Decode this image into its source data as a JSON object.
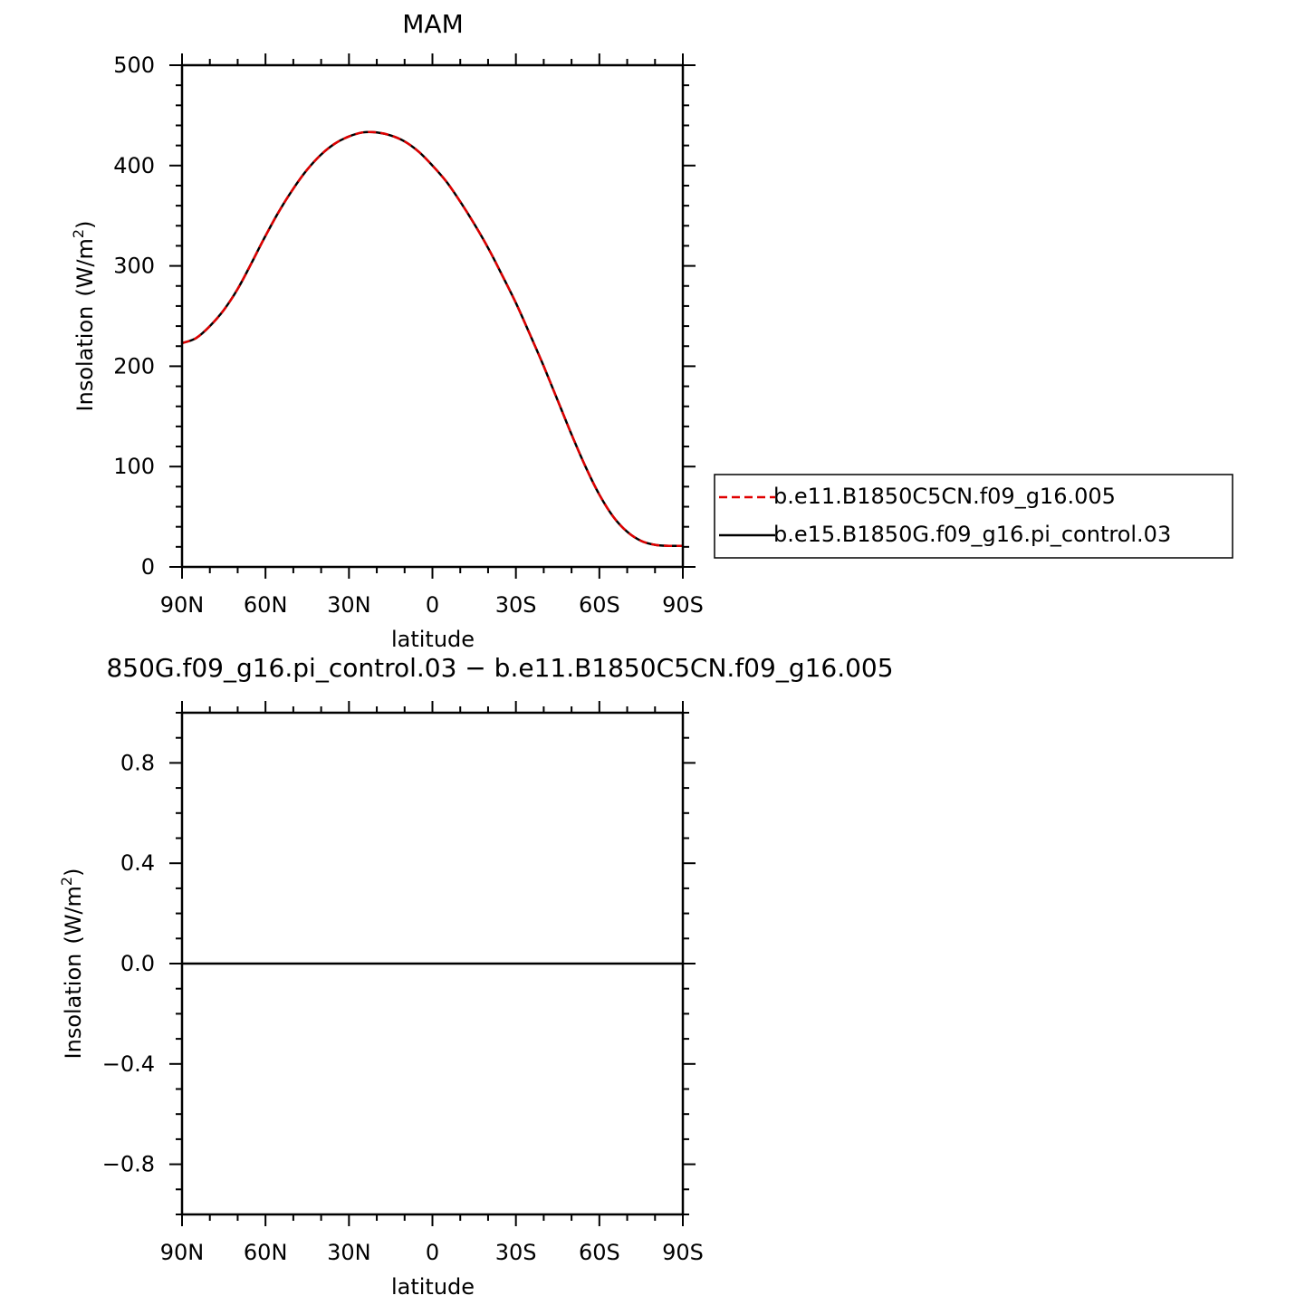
{
  "chart_data": [
    {
      "type": "line",
      "title": "MAM",
      "xlabel": "latitude",
      "ylabel": "Insolation (W/m²)",
      "ylabel_main": "Insolation",
      "ylabel_unit_pre": "(W/m",
      "ylabel_unit_sup": "2",
      "ylabel_unit_post": ")",
      "xlim": [
        90,
        -90
      ],
      "ylim": [
        0,
        500
      ],
      "x_ticks": [
        90,
        60,
        30,
        0,
        -30,
        -60,
        -90
      ],
      "x_tick_labels": [
        "90N",
        "60N",
        "30N",
        "0",
        "30S",
        "60S",
        "90S"
      ],
      "y_ticks": [
        0,
        100,
        200,
        300,
        400,
        500
      ],
      "y_tick_labels": [
        "0",
        "100",
        "200",
        "300",
        "400",
        "500"
      ],
      "legend_position": "right",
      "x": [
        90,
        85,
        80,
        75,
        70,
        65,
        60,
        55,
        50,
        45,
        40,
        35,
        30,
        25,
        20,
        15,
        10,
        5,
        0,
        -5,
        -10,
        -15,
        -20,
        -25,
        -30,
        -35,
        -40,
        -45,
        -50,
        -55,
        -60,
        -65,
        -70,
        -75,
        -80,
        -85,
        -90
      ],
      "series": [
        {
          "name": "b.e11.B1850C5CN.f09_g16.005",
          "color": "#e00000",
          "dash": "dashed",
          "values": [
            223,
            228,
            240,
            256,
            277,
            303,
            330,
            355,
            377,
            396,
            411,
            422,
            429,
            433,
            433,
            430,
            424,
            414,
            400,
            384,
            364,
            342,
            318,
            291,
            263,
            232,
            200,
            166,
            132,
            100,
            72,
            50,
            35,
            26,
            22,
            21,
            21
          ]
        },
        {
          "name": "b.e15.B1850G.f09_g16.pi_control.03",
          "color": "#000000",
          "dash": "solid",
          "values": [
            223,
            228,
            240,
            256,
            277,
            303,
            330,
            355,
            377,
            396,
            411,
            422,
            429,
            433,
            433,
            430,
            424,
            414,
            400,
            384,
            364,
            342,
            318,
            291,
            263,
            232,
            200,
            166,
            132,
            100,
            72,
            50,
            35,
            26,
            22,
            21,
            21
          ]
        }
      ]
    },
    {
      "type": "line",
      "title": "850G.f09_g16.pi_control.03 − b.e11.B1850C5CN.f09_g16.005",
      "xlabel": "latitude",
      "ylabel": "Insolation (W/m²)",
      "ylabel_main": "Insolation",
      "ylabel_unit_pre": "(W/m",
      "ylabel_unit_sup": "2",
      "ylabel_unit_post": ")",
      "xlim": [
        90,
        -90
      ],
      "ylim": [
        -1,
        1
      ],
      "x_ticks": [
        90,
        60,
        30,
        0,
        -30,
        -60,
        -90
      ],
      "x_tick_labels": [
        "90N",
        "60N",
        "30N",
        "0",
        "30S",
        "60S",
        "90S"
      ],
      "y_ticks": [
        -0.8,
        -0.4,
        0.0,
        0.4,
        0.8
      ],
      "y_tick_labels": [
        "−0.8",
        "−0.4",
        "0.0",
        "0.4",
        "0.8"
      ],
      "x": [
        90,
        -90
      ],
      "series": [
        {
          "color": "#000000",
          "dash": "solid",
          "values": [
            0,
            0
          ]
        }
      ]
    }
  ]
}
